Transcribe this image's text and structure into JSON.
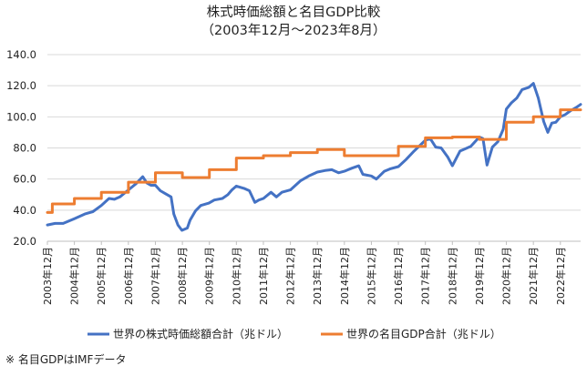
{
  "chart_data": {
    "type": "line",
    "title": "株式時価総額と名目GDP比較",
    "subtitle": "（2003年12月～2023年8月）",
    "xlabel": "",
    "ylabel": "",
    "ylim": [
      20,
      140
    ],
    "yticks": [
      "20.0",
      "40.0",
      "60.0",
      "80.0",
      "100.0",
      "120.0",
      "140.0"
    ],
    "grid": true,
    "legend_position": "bottom",
    "x_range": [
      2003.917,
      2023.667
    ],
    "categories": [
      "2003年12月",
      "2004年12月",
      "2005年12月",
      "2006年12月",
      "2007年12月",
      "2008年12月",
      "2009年12月",
      "2010年12月",
      "2011年12月",
      "2012年12月",
      "2013年12月",
      "2014年12月",
      "2015年12月",
      "2016年12月",
      "2017年12月",
      "2018年12月",
      "2019年12月",
      "2020年12月",
      "2021年12月",
      "2022年12月"
    ],
    "series": [
      {
        "name": "世界の株式時価総額合計（兆ドル）",
        "color": "#4472C4",
        "x": [
          2003.917,
          2004.2,
          2004.5,
          2004.917,
          2005.3,
          2005.6,
          2005.917,
          2006.2,
          2006.4,
          2006.6,
          2006.917,
          2007.2,
          2007.45,
          2007.6,
          2007.75,
          2007.917,
          2008.1,
          2008.3,
          2008.5,
          2008.6,
          2008.75,
          2008.9,
          2009.1,
          2009.2,
          2009.4,
          2009.6,
          2009.9,
          2010.1,
          2010.4,
          2010.6,
          2010.75,
          2010.917,
          2011.2,
          2011.4,
          2011.6,
          2011.75,
          2011.917,
          2012.2,
          2012.4,
          2012.6,
          2012.917,
          2013.3,
          2013.6,
          2013.917,
          2014.2,
          2014.45,
          2014.7,
          2014.917,
          2015.2,
          2015.45,
          2015.6,
          2015.75,
          2015.917,
          2016.1,
          2016.4,
          2016.6,
          2016.917,
          2017.2,
          2017.5,
          2017.917,
          2018.1,
          2018.3,
          2018.5,
          2018.75,
          2018.917,
          2019.2,
          2019.4,
          2019.6,
          2019.917,
          2020.05,
          2020.2,
          2020.4,
          2020.6,
          2020.8,
          2020.917,
          2021.1,
          2021.3,
          2021.5,
          2021.75,
          2021.917,
          2022.1,
          2022.3,
          2022.45,
          2022.6,
          2022.75,
          2022.917,
          2023.1,
          2023.3,
          2023.5,
          2023.667
        ],
        "values": [
          30.5,
          31.5,
          31.5,
          34.5,
          37.5,
          39.0,
          43.0,
          47.5,
          47.0,
          48.5,
          53.0,
          57.0,
          61.5,
          57.5,
          56.0,
          56.0,
          52.5,
          50.5,
          48.5,
          37.5,
          30.5,
          27.0,
          28.5,
          33.5,
          39.5,
          43.0,
          44.5,
          46.5,
          47.5,
          50.0,
          53.0,
          55.5,
          54.0,
          52.5,
          45.0,
          46.5,
          47.5,
          51.5,
          48.5,
          51.5,
          53.0,
          59.0,
          62.0,
          64.5,
          65.5,
          66.0,
          64.0,
          65.0,
          67.0,
          68.5,
          63.0,
          62.5,
          62.0,
          60.0,
          65.0,
          66.5,
          68.0,
          72.5,
          78.0,
          85.0,
          86.0,
          80.5,
          80.0,
          74.0,
          68.5,
          78.0,
          79.5,
          81.0,
          87.0,
          86.0,
          69.0,
          80.5,
          84.0,
          92.0,
          105.0,
          109.0,
          112.0,
          117.5,
          119.0,
          121.5,
          112.0,
          97.0,
          90.0,
          96.0,
          96.5,
          100.0,
          101.5,
          104.0,
          106.0,
          108.0
        ]
      },
      {
        "name": "世界の名目GDP合計（兆ドル）",
        "color": "#ED7D31",
        "step": true,
        "x": [
          2003.917,
          2004.1,
          2004.917,
          2005.917,
          2006.917,
          2007.917,
          2008.917,
          2009.917,
          2010.917,
          2011.917,
          2012.917,
          2013.917,
          2014.917,
          2015.917,
          2016.917,
          2017.917,
          2018.917,
          2019.917,
          2020.917,
          2021.917,
          2022.917,
          2023.667
        ],
        "values": [
          38.5,
          44.0,
          47.5,
          51.5,
          58.0,
          64.0,
          61.0,
          66.0,
          73.5,
          75.0,
          77.0,
          79.0,
          75.0,
          75.0,
          81.0,
          86.5,
          87.0,
          85.5,
          96.5,
          100.0,
          104.5,
          104.5
        ]
      }
    ],
    "note": "※ 名目GDPはIMFデータ"
  }
}
